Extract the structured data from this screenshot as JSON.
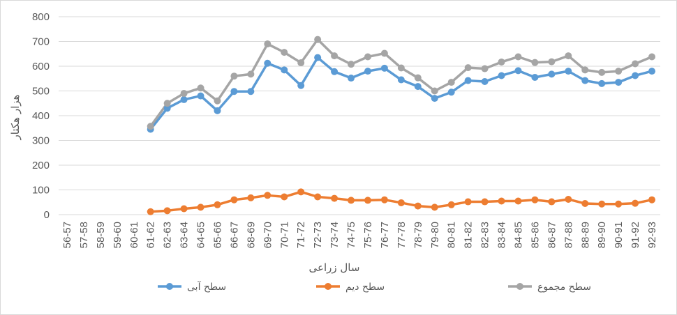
{
  "chart_data": {
    "type": "line",
    "title": "",
    "xlabel": "سال زراعی",
    "ylabel": "هزار هکتار",
    "ylim": [
      0,
      800
    ],
    "yticks": [
      0,
      100,
      200,
      300,
      400,
      500,
      600,
      700,
      800
    ],
    "grid": true,
    "legend_position": "bottom",
    "categories": [
      "56-57",
      "57-58",
      "58-59",
      "59-60",
      "60-61",
      "61-62",
      "62-63",
      "63-64",
      "64-65",
      "65-66",
      "66-67",
      "68-69",
      "69-70",
      "70-71",
      "71-72",
      "72-73",
      "73-74",
      "74-75",
      "75-76",
      "76-77",
      "77-78",
      "78-79",
      "79-80",
      "80-81",
      "81-82",
      "82-83",
      "83-84",
      "84-85",
      "85-86",
      "86-87",
      "87-88",
      "88-89",
      "89-90",
      "90-91",
      "91-92",
      "92-93"
    ],
    "series": [
      {
        "name": "سطح آبی",
        "color": "#5b9bd5",
        "values": [
          null,
          null,
          null,
          null,
          null,
          345,
          430,
          465,
          480,
          420,
          498,
          498,
          612,
          585,
          522,
          635,
          578,
          552,
          580,
          592,
          545,
          518,
          470,
          495,
          542,
          538,
          562,
          582,
          555,
          568,
          580,
          542,
          530,
          535,
          562,
          580
        ]
      },
      {
        "name": "سطح دیم",
        "color": "#ed7d31",
        "values": [
          null,
          null,
          null,
          null,
          null,
          12,
          16,
          24,
          30,
          40,
          60,
          68,
          78,
          72,
          92,
          72,
          66,
          58,
          58,
          60,
          48,
          35,
          30,
          40,
          52,
          52,
          55,
          55,
          60,
          52,
          62,
          45,
          43,
          43,
          46,
          60
        ]
      },
      {
        "name": "سطح مجموع",
        "color": "#a5a5a5",
        "values": [
          null,
          null,
          null,
          null,
          null,
          357,
          450,
          490,
          512,
          460,
          560,
          568,
          690,
          656,
          614,
          708,
          642,
          608,
          638,
          652,
          593,
          553,
          500,
          535,
          594,
          590,
          617,
          638,
          615,
          618,
          642,
          585,
          575,
          580,
          610,
          638
        ]
      }
    ]
  }
}
